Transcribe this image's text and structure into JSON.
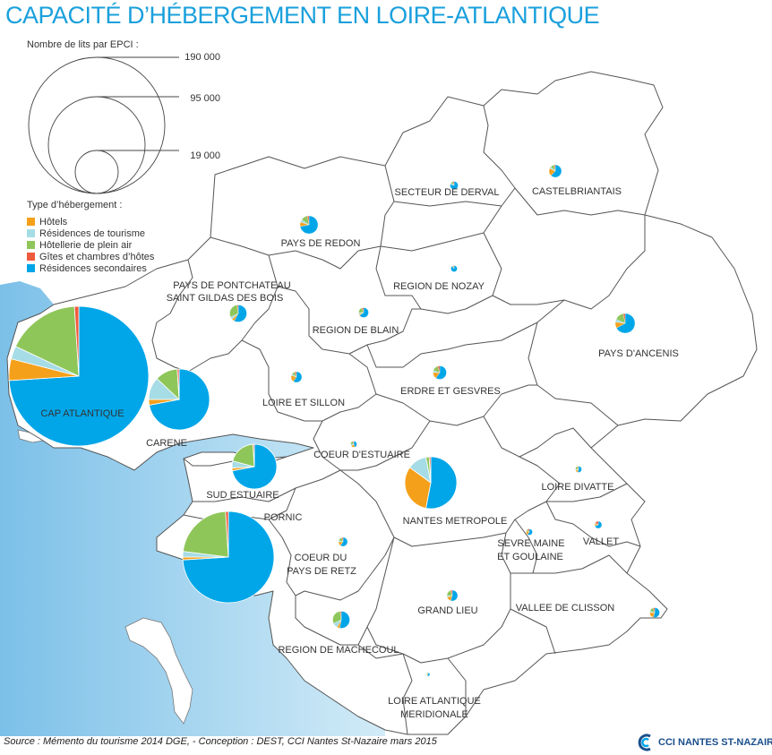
{
  "title": "CAPACITÉ D’HÉBERGEMENT EN LOIRE-ATLANTIQUE",
  "legend": {
    "size_title": "Nombre de lits par EPCI :",
    "size_values": [
      "190 000",
      "95 000",
      "19 000"
    ],
    "type_title": "Type d’hébergement :",
    "types": [
      {
        "label": "Hôtels",
        "color": "#f5a01a"
      },
      {
        "label": "Résidences de tourisme",
        "color": "#a6dce6"
      },
      {
        "label": "Hôtellerie de plein air",
        "color": "#8ec65a"
      },
      {
        "label": "Gîtes et chambres d’hôtes",
        "color": "#f05a3c"
      },
      {
        "label": "Résidences secondaires",
        "color": "#00a6e8"
      }
    ]
  },
  "epci": [
    {
      "name": "SECTEUR DE DERVAL",
      "shares": [
        0,
        0.05,
        0.1,
        0.05,
        0.8
      ]
    },
    {
      "name": "CASTELBRIANTAIS",
      "shares": [
        0.2,
        0.05,
        0.1,
        0.03,
        0.62
      ]
    },
    {
      "name": "PAYS DE REDON",
      "shares": [
        0.08,
        0.05,
        0.12,
        0.03,
        0.72
      ]
    },
    {
      "name": "REGION DE NOZAY",
      "shares": [
        0,
        0,
        0.05,
        0.05,
        0.9
      ]
    },
    {
      "name": "PAYS DE PONTCHATEAU",
      "name2": "SAINT GILDAS DES BOIS",
      "shares": [
        0.05,
        0.05,
        0.3,
        0.02,
        0.58
      ]
    },
    {
      "name": "REGION DE BLAIN",
      "shares": [
        0.05,
        0.05,
        0.2,
        0.05,
        0.65
      ]
    },
    {
      "name": "PAYS D'ANCENIS",
      "shares": [
        0.1,
        0.05,
        0.15,
        0.03,
        0.67
      ]
    },
    {
      "name": "CAP ATLANTIQUE",
      "shares": [
        0.05,
        0.03,
        0.17,
        0.01,
        0.74
      ]
    },
    {
      "name": "LOIRE ET SILLON",
      "shares": [
        0.2,
        0.05,
        0.1,
        0.05,
        0.6
      ]
    },
    {
      "name": "ERDRE ET GESVRES",
      "shares": [
        0.15,
        0.05,
        0.15,
        0.05,
        0.6
      ]
    },
    {
      "name": "CARENE",
      "shares": [
        0.03,
        0.12,
        0.12,
        0.01,
        0.72
      ]
    },
    {
      "name": "COEUR D'ESTUAIRE",
      "shares": [
        0.2,
        0.1,
        0.2,
        0.05,
        0.45
      ]
    },
    {
      "name": "SUD ESTUAIRE",
      "shares": [
        0.02,
        0.05,
        0.2,
        0.01,
        0.72
      ]
    },
    {
      "name": "PORNIC",
      "shares": [
        0.01,
        0.02,
        0.22,
        0.01,
        0.74
      ]
    },
    {
      "name": "NANTES METROPOLE",
      "shares": [
        0.32,
        0.12,
        0.02,
        0.01,
        0.53
      ]
    },
    {
      "name": "LOIRE DIVATTE",
      "shares": [
        0.15,
        0.05,
        0.2,
        0.05,
        0.55
      ]
    },
    {
      "name": "VALLET",
      "shares": [
        0.1,
        0,
        0.05,
        0.15,
        0.7
      ]
    },
    {
      "name": "COEUR DU",
      "name2": "PAYS DE RETZ",
      "shares": [
        0.15,
        0.05,
        0.15,
        0.05,
        0.6
      ]
    },
    {
      "name": "SEVRE MAINE",
      "name2": "ET GOULAINE",
      "shares": [
        0.2,
        0,
        0.1,
        0.1,
        0.6
      ]
    },
    {
      "name": "GRAND LIEU",
      "shares": [
        0.15,
        0.05,
        0.2,
        0.05,
        0.55
      ]
    },
    {
      "name": "VALLEE DE CLISSON",
      "shares": [
        0.2,
        0.05,
        0.15,
        0.05,
        0.55
      ]
    },
    {
      "name": "REGION DE MACHECOUL",
      "shares": [
        0.05,
        0.1,
        0.3,
        0.02,
        0.53
      ]
    },
    {
      "name": "LOIRE ATLANTIQUE",
      "name2": "MERIDIONALE",
      "shares": [
        0.1,
        0.05,
        0.2,
        0.05,
        0.6
      ]
    }
  ],
  "source": "Source : Mémento du tourisme 2014 DGE,  - Conception : DEST, CCI Nantes St-Nazaire mars 2015",
  "logo_text": "CCI NANTES ST-NAZAIRE",
  "colors": {
    "sea": "#8ec8ea",
    "border": "#555555",
    "title": "#1aa0dc"
  }
}
